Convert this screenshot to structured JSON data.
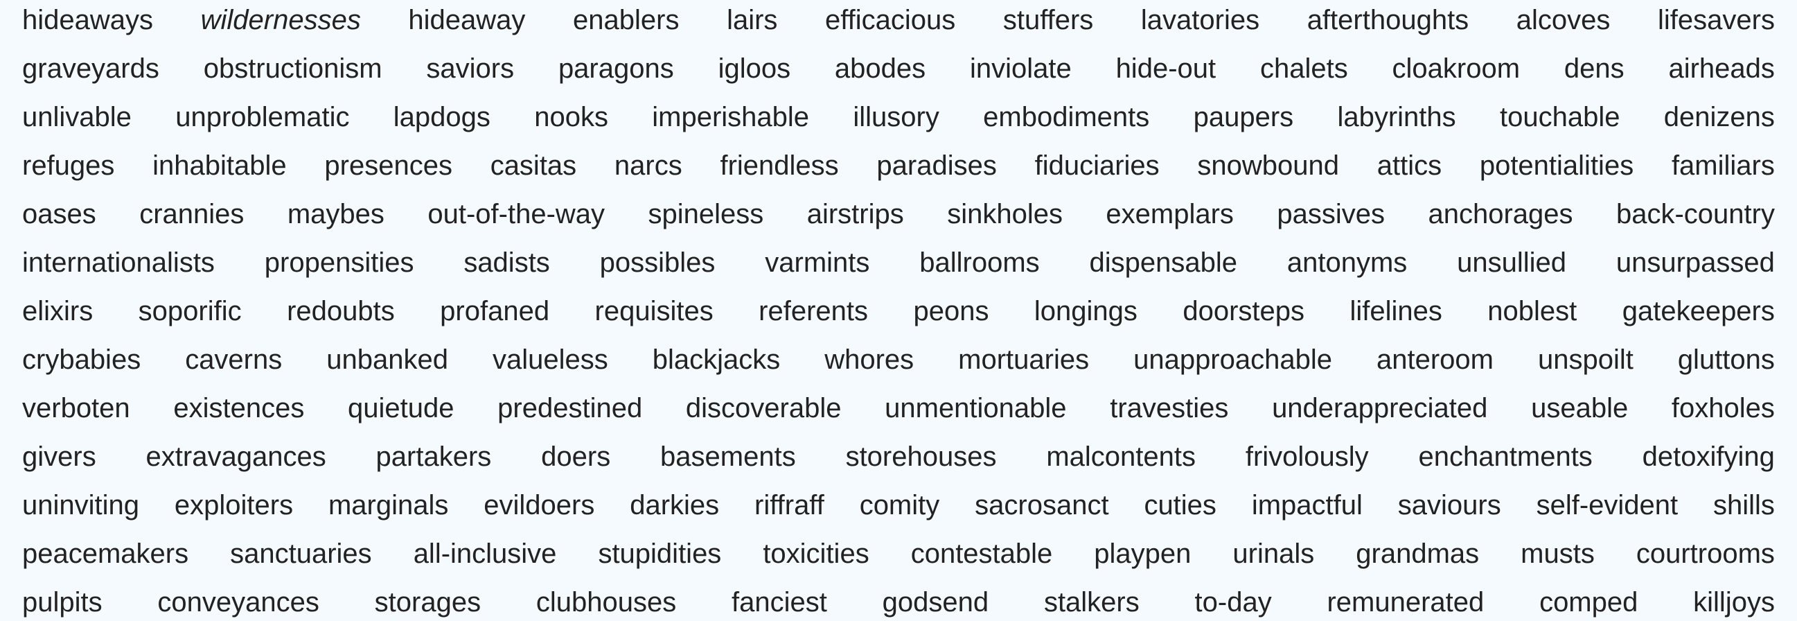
{
  "rows": [
    [
      "hideaways",
      "wildernesses",
      "hideaway",
      "enablers",
      "lairs",
      "efficacious",
      "stuffers",
      "lavatories",
      "afterthoughts",
      "alcoves",
      "lifesavers"
    ],
    [
      "graveyards",
      "obstructionism",
      "saviors",
      "paragons",
      "igloos",
      "abodes",
      "inviolate",
      "hide-out",
      "chalets",
      "cloakroom",
      "dens",
      "airheads"
    ],
    [
      "unlivable",
      "unproblematic",
      "lapdogs",
      "nooks",
      "imperishable",
      "illusory",
      "embodiments",
      "paupers",
      "labyrinths",
      "touchable",
      "denizens"
    ],
    [
      "refuges",
      "inhabitable",
      "presences",
      "casitas",
      "narcs",
      "friendless",
      "paradises",
      "fiduciaries",
      "snowbound",
      "attics",
      "potentialities",
      "familiars"
    ],
    [
      "oases",
      "crannies",
      "maybes",
      "out-of-the-way",
      "spineless",
      "airstrips",
      "sinkholes",
      "exemplars",
      "passives",
      "anchorages",
      "back-country"
    ],
    [
      "internationalists",
      "propensities",
      "sadists",
      "possibles",
      "varmints",
      "ballrooms",
      "dispensable",
      "antonyms",
      "unsullied",
      "unsurpassed"
    ],
    [
      "elixirs",
      "soporific",
      "redoubts",
      "profaned",
      "requisites",
      "referents",
      "peons",
      "longings",
      "doorsteps",
      "lifelines",
      "noblest",
      "gatekeepers"
    ],
    [
      "crybabies",
      "caverns",
      "unbanked",
      "valueless",
      "blackjacks",
      "whores",
      "mortuaries",
      "unapproachable",
      "anteroom",
      "unspoilt",
      "gluttons"
    ],
    [
      "verboten",
      "existences",
      "quietude",
      "predestined",
      "discoverable",
      "unmentionable",
      "travesties",
      "underappreciated",
      "useable",
      "foxholes"
    ],
    [
      "givers",
      "extravagances",
      "partakers",
      "doers",
      "basements",
      "storehouses",
      "malcontents",
      "frivolously",
      "enchantments",
      "detoxifying"
    ],
    [
      "uninviting",
      "exploiters",
      "marginals",
      "evildoers",
      "darkies",
      "riffraff",
      "comity",
      "sacrosanct",
      "cuties",
      "impactful",
      "saviours",
      "self-evident",
      "shills"
    ],
    [
      "peacemakers",
      "sanctuaries",
      "all-inclusive",
      "stupidities",
      "toxicities",
      "contestable",
      "playpen",
      "urinals",
      "grandmas",
      "musts",
      "courtrooms"
    ],
    [
      "pulpits",
      "conveyances",
      "storages",
      "clubhouses",
      "fanciest",
      "godsend",
      "stalkers",
      "to-day",
      "remunerated",
      "comped",
      "killjoys"
    ]
  ],
  "italic_word": "wildernesses",
  "colors": {
    "background": "#f5faff",
    "text": "#222222"
  }
}
